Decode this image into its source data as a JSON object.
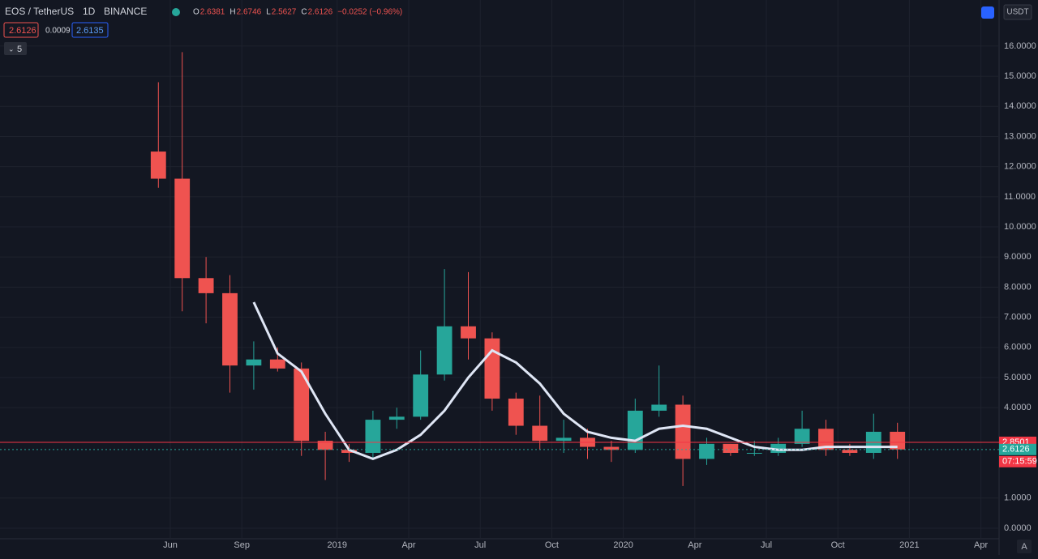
{
  "header": {
    "symbol": "EOS / TetherUS",
    "interval": "1D",
    "exchange": "BINANCE",
    "ohlc": [
      {
        "label": "O",
        "value": 2.6381
      },
      {
        "label": "H",
        "value": 2.6746
      },
      {
        "label": "L",
        "value": 2.5627
      },
      {
        "label": "C",
        "value": 2.6126
      }
    ],
    "change": "−0.0252 (−0.96%)",
    "sell": 2.6126,
    "spread": 0.0009,
    "buy": 2.6135,
    "indicators": 5,
    "currency": "USDT",
    "auto": "A"
  },
  "chart_data": {
    "type": "candlestick",
    "color_up": "#26a69a",
    "color_down": "#ef5350",
    "categories": [
      null,
      "Jun",
      null,
      null,
      "Sep",
      null,
      null,
      null,
      "2019",
      null,
      null,
      "Apr",
      null,
      null,
      "Jul",
      null,
      null,
      "Oct",
      null,
      null,
      "2020",
      null,
      null,
      "Apr",
      null,
      null,
      "Jul",
      null,
      null,
      "Oct",
      null,
      null,
      "2021",
      null,
      null,
      "Apr"
    ],
    "open": [
      12.5,
      11.6,
      8.3,
      7.8,
      5.4,
      5.6,
      5.3,
      2.9,
      2.6,
      2.5,
      3.6,
      3.7,
      5.1,
      6.7,
      6.3,
      4.3,
      3.4,
      2.9,
      3.0,
      2.7,
      2.6,
      3.9,
      4.1,
      2.3,
      2.8,
      2.5,
      2.5,
      2.8,
      3.3,
      2.6,
      2.5,
      3.2,
      null,
      null,
      null,
      null
    ],
    "high": [
      14.8,
      15.8,
      9.0,
      8.4,
      6.2,
      6.0,
      5.5,
      3.2,
      2.8,
      3.9,
      4.0,
      5.9,
      8.6,
      8.5,
      6.5,
      4.5,
      4.4,
      3.6,
      3.3,
      2.9,
      4.3,
      5.4,
      4.4,
      3.0,
      2.8,
      2.9,
      3.0,
      3.9,
      3.6,
      2.8,
      3.8,
      3.5,
      null,
      null,
      null,
      null
    ],
    "low": [
      11.3,
      7.2,
      6.8,
      4.5,
      4.6,
      5.2,
      2.4,
      1.6,
      2.2,
      2.3,
      3.3,
      3.6,
      4.9,
      5.6,
      3.9,
      3.1,
      2.6,
      2.5,
      2.3,
      2.2,
      2.5,
      3.7,
      1.4,
      2.1,
      2.4,
      2.4,
      2.4,
      2.7,
      2.4,
      2.4,
      2.3,
      2.3,
      null,
      null,
      null,
      null
    ],
    "close": [
      11.6,
      8.3,
      7.8,
      5.4,
      5.6,
      5.3,
      2.9,
      2.6,
      2.5,
      3.6,
      3.7,
      5.1,
      6.7,
      6.3,
      4.3,
      3.4,
      2.9,
      3.0,
      2.7,
      2.6,
      3.9,
      4.1,
      2.3,
      2.8,
      2.5,
      2.5,
      2.8,
      3.3,
      2.6,
      2.5,
      3.2,
      2.6126,
      null,
      null,
      null,
      null
    ],
    "overlay": {
      "color": "#dfe6f5",
      "values": [
        null,
        null,
        null,
        null,
        7.5,
        5.8,
        5.2,
        3.8,
        2.6,
        2.3,
        2.6,
        3.1,
        3.9,
        5.0,
        5.9,
        5.5,
        4.8,
        3.8,
        3.2,
        3.0,
        2.9,
        3.3,
        3.4,
        3.3,
        3.0,
        2.7,
        2.6,
        2.6,
        2.7,
        2.7,
        2.7,
        2.7,
        null,
        null,
        null,
        null
      ]
    },
    "markers": [
      {
        "value": 2.8501,
        "color": "#f23645"
      },
      {
        "value": 2.6126,
        "color": "#26a69a"
      }
    ],
    "countdown": "07:15:59",
    "ylim": [
      -0.35,
      17.53
    ],
    "yticks": [
      {
        "value": 0,
        "label": "0.0000"
      },
      {
        "value": 1,
        "label": "1.0000"
      },
      {
        "value": 4,
        "label": "4.0000"
      },
      {
        "value": 5,
        "label": "5.0000"
      },
      {
        "value": 6,
        "label": "6.0000"
      },
      {
        "value": 7,
        "label": "7.0000"
      },
      {
        "value": 8,
        "label": "8.0000"
      },
      {
        "value": 9,
        "label": "9.0000"
      },
      {
        "value": 10,
        "label": "10.0000"
      },
      {
        "value": 11,
        "label": "11.0000"
      },
      {
        "value": 12,
        "label": "12.0000"
      },
      {
        "value": 13,
        "label": "13.0000"
      },
      {
        "value": 14,
        "label": "14.0000"
      },
      {
        "value": 15,
        "label": "15.0000"
      },
      {
        "value": 16,
        "label": "16.0000"
      }
    ],
    "grid": true
  }
}
